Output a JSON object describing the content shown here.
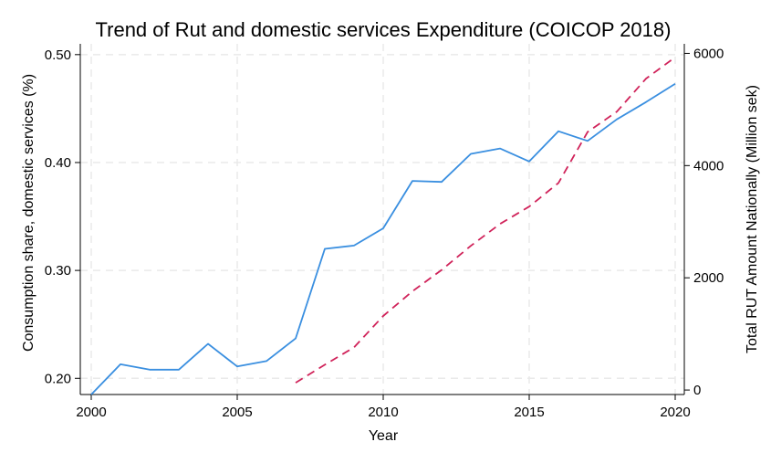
{
  "chart_data": {
    "type": "line",
    "title": "Trend of Rut and domestic services Expenditure (COICOP 2018)",
    "xlabel": "Year",
    "ylabel_left": "Consumption share, domestic services (%)",
    "ylabel_right": "Total RUT Amount Nationally (Million sek)",
    "xlim": [
      2000,
      2020
    ],
    "ylim_left": [
      0.185,
      0.51
    ],
    "ylim_right": [
      -80,
      6170
    ],
    "x_ticks": [
      2000,
      2005,
      2010,
      2015,
      2020
    ],
    "y_left_ticks": [
      0.2,
      0.3,
      0.4,
      0.5
    ],
    "y_left_tick_labels": [
      "0.20",
      "0.30",
      "0.40",
      "0.50"
    ],
    "y_right_ticks": [
      0,
      2000,
      4000,
      6000
    ],
    "y_right_tick_labels": [
      "0",
      "2000",
      "4000",
      "6000"
    ],
    "grid": true,
    "legend": "none",
    "series": [
      {
        "name": "Consumption share, domestic services",
        "axis": "left",
        "color": "#3a8fe0",
        "style": "solid",
        "x": [
          2000,
          2001,
          2002,
          2003,
          2004,
          2005,
          2006,
          2007,
          2008,
          2009,
          2010,
          2011,
          2012,
          2013,
          2014,
          2015,
          2016,
          2017,
          2018,
          2019,
          2020
        ],
        "values": [
          0.185,
          0.213,
          0.208,
          0.208,
          0.232,
          0.211,
          0.216,
          0.237,
          0.32,
          0.323,
          0.339,
          0.383,
          0.382,
          0.408,
          0.413,
          0.401,
          0.429,
          0.42,
          0.44,
          0.456,
          0.473
        ]
      },
      {
        "name": "Total RUT Amount Nationally",
        "axis": "right",
        "color": "#d0235a",
        "style": "dashed",
        "x": [
          2007,
          2008,
          2009,
          2010,
          2011,
          2012,
          2013,
          2014,
          2015,
          2016,
          2017,
          2018,
          2019,
          2020
        ],
        "values": [
          130,
          450,
          760,
          1320,
          1760,
          2140,
          2570,
          2960,
          3270,
          3690,
          4600,
          4960,
          5550,
          5930
        ]
      }
    ]
  }
}
